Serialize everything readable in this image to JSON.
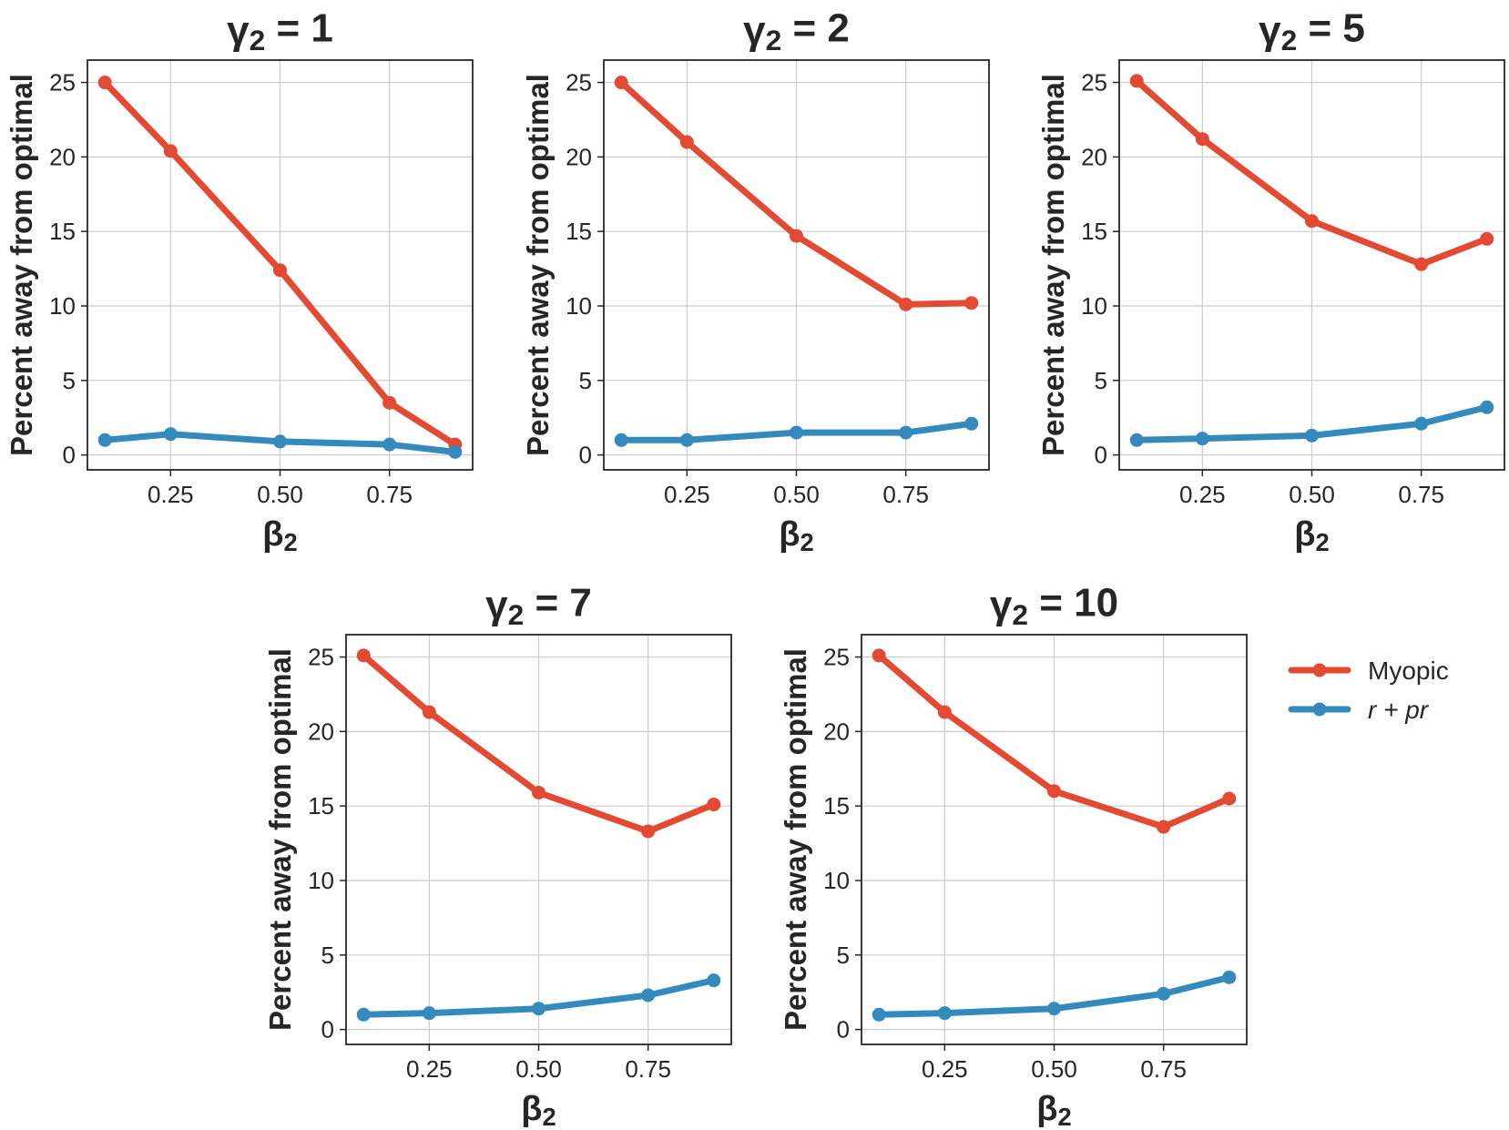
{
  "chart_data": {
    "type": "line",
    "ylabel": "Percent away from optimal",
    "xlabel": "β₂",
    "x": [
      0.1,
      0.25,
      0.5,
      0.75,
      0.9
    ],
    "xticks": [
      "0.25",
      "0.50",
      "0.75"
    ],
    "yticks": [
      "0",
      "5",
      "10",
      "15",
      "20",
      "25"
    ],
    "xlim": [
      0.06,
      0.94
    ],
    "ylim": [
      -1.0,
      26.5
    ],
    "grid": true,
    "legend": {
      "placement": "right",
      "entries": [
        {
          "name": "Myopic",
          "color": "#E24A33"
        },
        {
          "name": "r + pr",
          "color": "#348ABD"
        }
      ]
    },
    "panels": [
      {
        "title": "γ₂ = 1",
        "series": [
          {
            "name": "Myopic",
            "color": "#E24A33",
            "values": [
              25.0,
              20.4,
              12.4,
              3.5,
              0.7
            ]
          },
          {
            "name": "r + pr",
            "color": "#348ABD",
            "values": [
              1.0,
              1.4,
              0.9,
              0.7,
              0.2
            ]
          }
        ]
      },
      {
        "title": "γ₂ = 2",
        "series": [
          {
            "name": "Myopic",
            "color": "#E24A33",
            "values": [
              25.0,
              21.0,
              14.7,
              10.1,
              10.2
            ]
          },
          {
            "name": "r + pr",
            "color": "#348ABD",
            "values": [
              1.0,
              1.0,
              1.5,
              1.5,
              2.1
            ]
          }
        ]
      },
      {
        "title": "γ₂ = 5",
        "series": [
          {
            "name": "Myopic",
            "color": "#E24A33",
            "values": [
              25.1,
              21.2,
              15.7,
              12.8,
              14.5
            ]
          },
          {
            "name": "r + pr",
            "color": "#348ABD",
            "values": [
              1.0,
              1.1,
              1.3,
              2.1,
              3.2
            ]
          }
        ]
      },
      {
        "title": "γ₂ = 7",
        "series": [
          {
            "name": "Myopic",
            "color": "#E24A33",
            "values": [
              25.1,
              21.3,
              15.9,
              13.3,
              15.1
            ]
          },
          {
            "name": "r + pr",
            "color": "#348ABD",
            "values": [
              1.0,
              1.1,
              1.4,
              2.3,
              3.3
            ]
          }
        ]
      },
      {
        "title": "γ₂ = 10",
        "series": [
          {
            "name": "Myopic",
            "color": "#E24A33",
            "values": [
              25.1,
              21.3,
              16.0,
              13.6,
              15.5
            ]
          },
          {
            "name": "r + pr",
            "color": "#348ABD",
            "values": [
              1.0,
              1.1,
              1.4,
              2.4,
              3.5
            ]
          }
        ]
      }
    ]
  }
}
